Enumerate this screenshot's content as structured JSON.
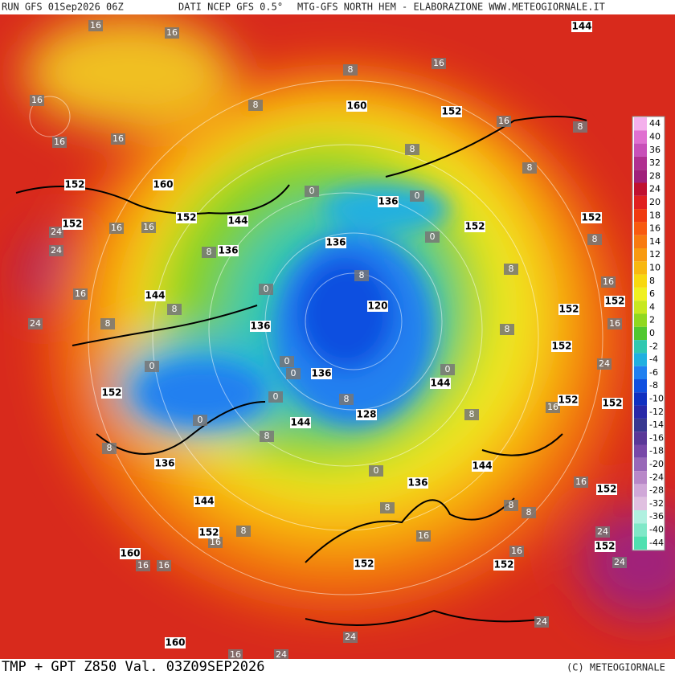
{
  "header": {
    "run": "RUN GFS 01Sep2026 06Z",
    "source": "DATI NCEP GFS 0.5°",
    "credit": "MTG-GFS NORTH HEM - ELABORAZIONE WWW.METEOGIORNALE.IT"
  },
  "footer": {
    "field": "TMP + GPT Z850 Val. 03Z09SEP2026",
    "copyright": "(C) METEOGIORNALE"
  },
  "colorbar": {
    "levels": [
      44,
      40,
      36,
      32,
      28,
      24,
      20,
      18,
      16,
      14,
      12,
      10,
      8,
      6,
      4,
      2,
      0,
      -2,
      -4,
      -6,
      -8,
      -10,
      -12,
      -14,
      -16,
      -18,
      -20,
      -24,
      -28,
      -32,
      -36,
      -40,
      -44
    ],
    "colors": [
      "#f4b0ec",
      "#e070d0",
      "#c850b8",
      "#b03090",
      "#a0207a",
      "#c01030",
      "#e02020",
      "#f03a10",
      "#f85a10",
      "#f87a10",
      "#f89a10",
      "#f8b810",
      "#f8d810",
      "#f0f020",
      "#c8e820",
      "#90d820",
      "#50c830",
      "#30c8b0",
      "#20b0e0",
      "#2080f0",
      "#1050e0",
      "#1030c0",
      "#2828a8",
      "#383890",
      "#5a3898",
      "#7848a8",
      "#9868b8",
      "#b888c8",
      "#d0a8d8",
      "#e0c0e0",
      "#b0f0e0",
      "#80e8c8",
      "#50e0b0"
    ]
  },
  "contour_labels": {
    "geopotential": [
      144,
      160,
      152,
      152,
      160,
      152,
      144,
      136,
      152,
      136,
      136,
      152,
      152,
      144,
      120,
      152,
      136,
      152,
      136,
      144,
      152,
      128,
      144,
      152,
      152,
      136,
      144,
      136,
      144,
      152,
      152,
      160,
      152,
      152,
      152,
      160,
      152
    ],
    "temperature": [
      16,
      16,
      16,
      8,
      16,
      16,
      16,
      8,
      16,
      8,
      8,
      24,
      24,
      16,
      16,
      8,
      0,
      0,
      0,
      8,
      8,
      16,
      8,
      0,
      16,
      8,
      24,
      8,
      8,
      16,
      24,
      0,
      0,
      0,
      0,
      8,
      0,
      16,
      8,
      0,
      8,
      8,
      0,
      8,
      8,
      16,
      8,
      24,
      8,
      16,
      16,
      16,
      16,
      16,
      24,
      24,
      16,
      24,
      8,
      24
    ]
  }
}
